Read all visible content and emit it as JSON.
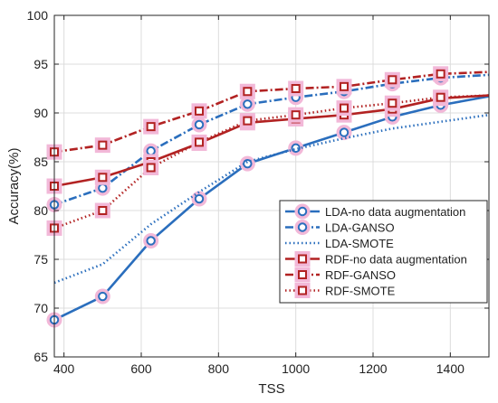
{
  "chart_data": {
    "type": "line",
    "xlabel": "TSS",
    "ylabel": "Accuracy(%)",
    "xlim": [
      375,
      1500
    ],
    "ylim": [
      65,
      100
    ],
    "xticks": [
      400,
      600,
      800,
      1000,
      1200,
      1400
    ],
    "yticks": [
      65,
      70,
      75,
      80,
      85,
      90,
      95,
      100
    ],
    "grid": true,
    "legend_position": "lower-right",
    "series": [
      {
        "name": "LDA-no data augmentation",
        "color": "#2a6ebd",
        "dash": "solid",
        "marker": "circle",
        "x": [
          375,
          500,
          625,
          750,
          875,
          1000,
          1125,
          1250,
          1375,
          1500
        ],
        "y": [
          68.8,
          71.2,
          76.9,
          81.2,
          84.8,
          86.4,
          88.0,
          89.6,
          90.8,
          91.7
        ]
      },
      {
        "name": "LDA-GANSO",
        "color": "#2a6ebd",
        "dash": "dashdot",
        "marker": "circle",
        "x": [
          375,
          500,
          625,
          750,
          875,
          1000,
          1125,
          1250,
          1375,
          1500
        ],
        "y": [
          80.6,
          82.3,
          86.1,
          88.8,
          90.9,
          91.6,
          92.2,
          93.0,
          93.6,
          93.9
        ]
      },
      {
        "name": "LDA-SMOTE",
        "color": "#2a6ebd",
        "dash": "dotted",
        "marker": "none",
        "x": [
          375,
          500,
          625,
          750,
          875,
          1000,
          1125,
          1250,
          1375,
          1500
        ],
        "y": [
          72.6,
          74.5,
          78.6,
          81.9,
          85.0,
          86.3,
          87.4,
          88.4,
          89.1,
          89.8
        ]
      },
      {
        "name": "RDF-no data augmentation",
        "color": "#b22222",
        "dash": "solid",
        "marker": "square",
        "x": [
          375,
          500,
          625,
          750,
          875,
          1000,
          1125,
          1250,
          1375,
          1500
        ],
        "y": [
          82.5,
          83.4,
          85.0,
          86.9,
          89.0,
          89.4,
          89.8,
          90.4,
          91.5,
          91.8
        ]
      },
      {
        "name": "RDF-GANSO",
        "color": "#b22222",
        "dash": "dashdot",
        "marker": "square",
        "x": [
          375,
          500,
          625,
          750,
          875,
          1000,
          1125,
          1250,
          1375,
          1500
        ],
        "y": [
          86.0,
          86.7,
          88.6,
          90.2,
          92.2,
          92.5,
          92.7,
          93.4,
          94.0,
          94.2
        ]
      },
      {
        "name": "RDF-SMOTE",
        "color": "#b22222",
        "dash": "dotted",
        "marker": "square",
        "x": [
          375,
          500,
          625,
          750,
          875,
          1000,
          1125,
          1250,
          1375,
          1500
        ],
        "y": [
          78.2,
          80.0,
          84.4,
          87.0,
          89.2,
          89.8,
          90.5,
          91.0,
          91.6,
          91.8
        ]
      }
    ]
  }
}
